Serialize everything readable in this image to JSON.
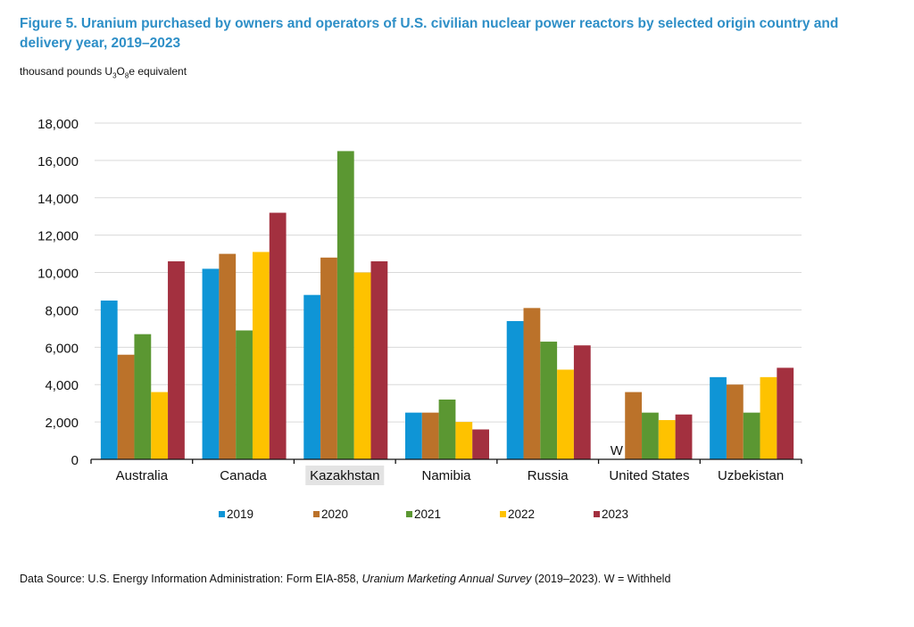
{
  "figure": {
    "title": "Figure 5. Uranium purchased by owners and operators of U.S. civilian nuclear power reactors by selected origin country and delivery year, 2019–2023",
    "units_prefix": "thousand pounds U",
    "units_sub1": "3",
    "units_mid": "O",
    "units_sub2": "8",
    "units_suffix": "e equivalent",
    "source_prefix": "Data Source: U.S. Energy Information Administration: Form EIA-858, ",
    "source_italic": "Uranium Marketing Annual Survey",
    "source_suffix": " (2019–2023). W = Withheld"
  },
  "chart_data": {
    "type": "bar",
    "title": "Figure 5. Uranium purchased by owners and operators of U.S. civilian nuclear power reactors by selected origin country and delivery year, 2019–2023",
    "xlabel": "",
    "ylabel": "thousand pounds U3O8e equivalent",
    "ylim": [
      0,
      18000
    ],
    "yticks": [
      0,
      2000,
      4000,
      6000,
      8000,
      10000,
      12000,
      14000,
      16000,
      18000
    ],
    "ytick_labels": [
      "0",
      "2,000",
      "4,000",
      "6,000",
      "8,000",
      "10,000",
      "12,000",
      "14,000",
      "16,000",
      "18,000"
    ],
    "grid": true,
    "legend_position": "bottom",
    "categories": [
      "Australia",
      "Canada",
      "Kazakhstan",
      "Namibia",
      "Russia",
      "United States",
      "Uzbekistan"
    ],
    "series": [
      {
        "name": "2019",
        "color": "#0f95d6",
        "values": [
          8500,
          10200,
          8800,
          2500,
          7400,
          null,
          4400
        ]
      },
      {
        "name": "2020",
        "color": "#bb722a",
        "values": [
          5600,
          11000,
          10800,
          2500,
          8100,
          3600,
          4000
        ]
      },
      {
        "name": "2021",
        "color": "#5b9732",
        "values": [
          6700,
          6900,
          16500,
          3200,
          6300,
          2500,
          2500
        ]
      },
      {
        "name": "2022",
        "color": "#fec200",
        "values": [
          3600,
          11100,
          10000,
          2000,
          4800,
          2100,
          4400
        ]
      },
      {
        "name": "2023",
        "color": "#a3303f",
        "values": [
          10600,
          13200,
          10600,
          1600,
          6100,
          2400,
          4900
        ]
      }
    ],
    "annotations": [
      {
        "category": "United States",
        "series": "2019",
        "text": "W"
      }
    ],
    "highlighted_category": "Kazakhstan"
  }
}
